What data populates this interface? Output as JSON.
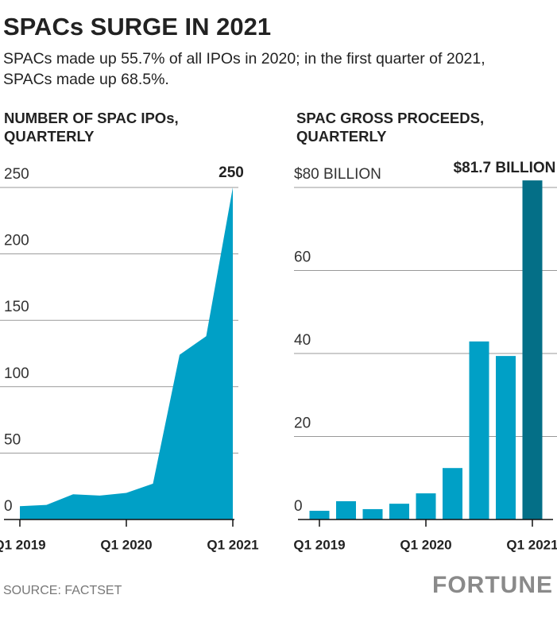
{
  "header": {
    "title": "SPACs SURGE IN 2021",
    "subtitle": [
      "SPACs made up 55.7% of all IPOs in 2020; in the first quarter of 2021,",
      "SPACs made up 68.5%."
    ]
  },
  "chart_data": [
    {
      "type": "area",
      "title": [
        "NUMBER OF SPAC IPOs,",
        "QUARTERLY"
      ],
      "categories": [
        "Q1 2019",
        null,
        null,
        null,
        "Q1 2020",
        null,
        null,
        null,
        "Q1 2021"
      ],
      "values": [
        10,
        11,
        19,
        18,
        20,
        27,
        124,
        138,
        250
      ],
      "value_labels": [
        null,
        null,
        null,
        null,
        null,
        null,
        null,
        null,
        "250"
      ],
      "color": "#00a0c6",
      "ylim": [
        0,
        250
      ],
      "yticks": [
        0,
        50,
        100,
        150,
        200,
        250
      ],
      "grid": true
    },
    {
      "type": "bar",
      "title": [
        "SPAC GROSS PROCEEDS,",
        "QUARTERLY"
      ],
      "categories": [
        "Q1 2019",
        null,
        null,
        null,
        "Q1 2020",
        null,
        null,
        null,
        "Q1 2021"
      ],
      "values": [
        2.1,
        4.4,
        2.5,
        3.8,
        6.3,
        12.4,
        42.9,
        39.4,
        81.7
      ],
      "value_labels": [
        null,
        null,
        null,
        null,
        null,
        null,
        null,
        null,
        "$81.7 BILLION"
      ],
      "colors": [
        "#00a0c6",
        "#00a0c6",
        "#00a0c6",
        "#00a0c6",
        "#00a0c6",
        "#00a0c6",
        "#00a0c6",
        "#00a0c6",
        "#046f87"
      ],
      "ylim": [
        0,
        80
      ],
      "yticks": [
        0,
        20,
        40,
        60,
        {
          "value": 80,
          "label": "$80 BILLION"
        }
      ],
      "grid": true
    }
  ],
  "footer": {
    "source": "SOURCE: FACTSET",
    "logo": "FORTUNE"
  }
}
